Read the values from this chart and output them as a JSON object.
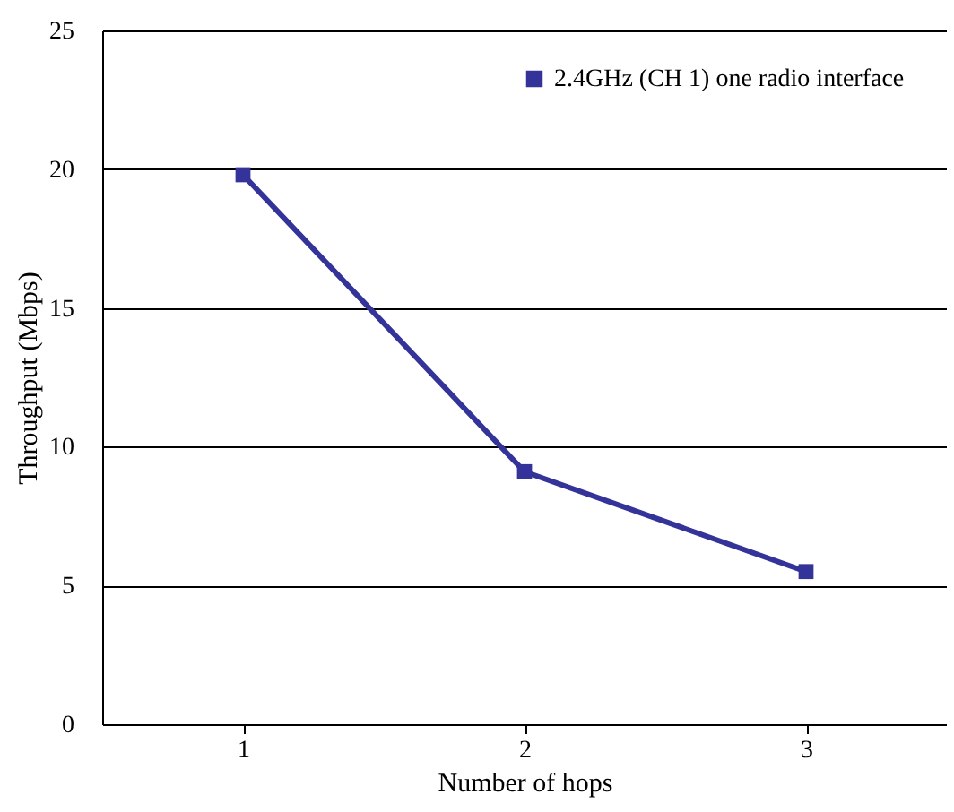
{
  "chart_data": {
    "type": "line",
    "xlabel": "Number of hops",
    "ylabel": "Throughput (Mbps)",
    "categories": [
      "1",
      "2",
      "3"
    ],
    "series": [
      {
        "name": "2.4GHz (CH 1)  one radio interface",
        "color": "#333399",
        "values": [
          19.8,
          9.1,
          5.5
        ]
      }
    ],
    "ylim": [
      0,
      25
    ],
    "yticks": [
      0,
      5,
      10,
      15,
      20,
      25
    ],
    "grid": "y",
    "legend": "top right",
    "marker": "square",
    "line_style": "solid"
  }
}
